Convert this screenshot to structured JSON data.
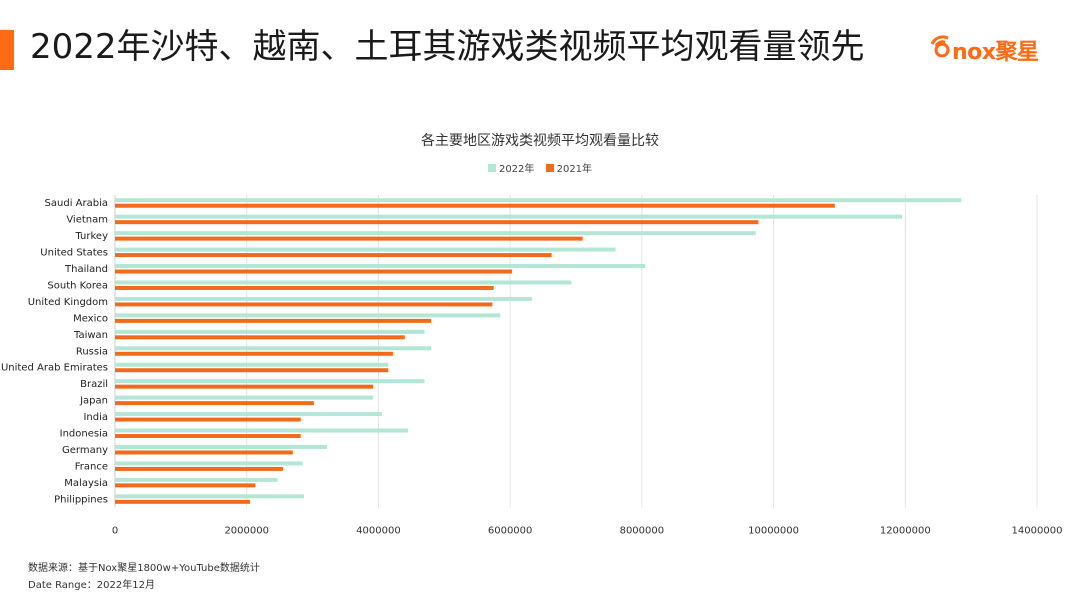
{
  "header": {
    "title": "2022年沙特、越南、土耳其游戏类视频平均观看量领先",
    "logo_text": "nox聚星"
  },
  "colors": {
    "accent": "#ff6a13",
    "series_2022": "#b3e6d6",
    "series_2021": "#f26b1d",
    "grid": "#e3e3e3"
  },
  "footer": {
    "source": "数据来源：基于Nox聚星1800w+YouTube数据统计",
    "date_range": "Date Range：2022年12月"
  },
  "chart_data": {
    "type": "bar",
    "orientation": "horizontal",
    "title": "各主要地区游戏类视频平均观看量比较",
    "legend_position": "top",
    "grid": true,
    "xlim": [
      0,
      14000000
    ],
    "x_ticks": [
      0,
      2000000,
      4000000,
      6000000,
      8000000,
      10000000,
      12000000,
      14000000
    ],
    "x_tick_labels": [
      "0",
      "2000000",
      "4000000",
      "6000000",
      "8000000",
      "10000000",
      "12000000",
      "14000000"
    ],
    "categories": [
      "Saudi Arabia",
      "Vietnam",
      "Turkey",
      "United States",
      "Thailand",
      "South Korea",
      "United Kingdom",
      "Mexico",
      "Taiwan",
      "Russia",
      "United Arab Emirates",
      "Brazil",
      "Japan",
      "India",
      "Indonesia",
      "Germany",
      "France",
      "Malaysia",
      "Philippines"
    ],
    "series": [
      {
        "name": "2022年",
        "color": "#b3e6d6",
        "values": [
          12850000,
          11950000,
          9730000,
          7600000,
          8050000,
          6930000,
          6330000,
          5850000,
          4700000,
          4800000,
          4150000,
          4700000,
          3920000,
          4050000,
          4450000,
          3220000,
          2850000,
          2470000,
          2870000
        ]
      },
      {
        "name": "2021年",
        "color": "#f26b1d",
        "values": [
          10930000,
          9770000,
          7100000,
          6630000,
          6030000,
          5750000,
          5730000,
          4800000,
          4400000,
          4220000,
          4150000,
          3920000,
          3020000,
          2820000,
          2820000,
          2700000,
          2550000,
          2130000,
          2050000
        ]
      }
    ]
  }
}
